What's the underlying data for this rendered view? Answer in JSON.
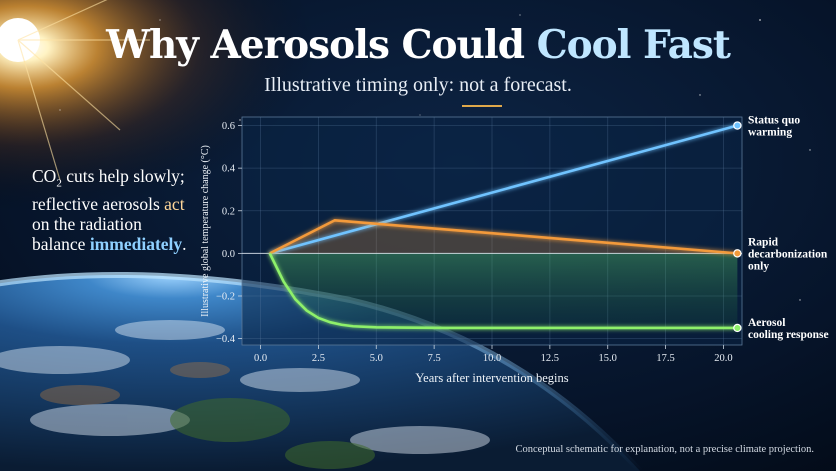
{
  "header": {
    "title_main": "Why Aerosols Could ",
    "title_highlight": "Cool Fast",
    "subtitle": "Illustrative timing only: not a forecast."
  },
  "side_text": {
    "part1": "CO",
    "subscript": "2",
    "part2": " cuts help slowly; reflective aerosols ",
    "part3": "act",
    "part4": " on the radiation balance ",
    "part5": "immediately",
    "part6": "."
  },
  "footnote": "Conceptual schematic for explanation, not a precise climate projection.",
  "colors": {
    "status_quo": "#6fc3ff",
    "rapid_decarbonization": "#f39a3b",
    "aerosol": "#8ef06a",
    "zero_line": "#dfe6ee",
    "title_highlight": "#bfe6ff"
  },
  "chart_data": {
    "type": "line",
    "xlabel": "Years after intervention begins",
    "ylabel": "Illustrative global temperature change (°C)",
    "xlim": [
      -0.8,
      20.8
    ],
    "ylim": [
      -0.43,
      0.64
    ],
    "xticks": [
      0.0,
      2.5,
      5.0,
      7.5,
      10.0,
      12.5,
      15.0,
      17.5,
      20.0
    ],
    "xtick_labels": [
      "0.0",
      "2.5",
      "5.0",
      "7.5",
      "10.0",
      "12.5",
      "15.0",
      "17.5",
      "20.0"
    ],
    "yticks": [
      -0.4,
      -0.2,
      0.0,
      0.2,
      0.4,
      0.6
    ],
    "ytick_labels": [
      "−0.4",
      "−0.2",
      "0.0",
      "0.2",
      "0.4",
      "0.6"
    ],
    "grid": true,
    "series": [
      {
        "key": "status_quo",
        "name": "Status quo warming",
        "label_lines": [
          "Status quo",
          "warming"
        ],
        "x": [
          0.4,
          20.6
        ],
        "y": [
          0.0,
          0.6
        ]
      },
      {
        "key": "rapid_decarbonization",
        "name": "Rapid decarbonization only",
        "label_lines": [
          "Rapid",
          "decarbonization",
          "only"
        ],
        "x": [
          0.4,
          3.2,
          20.6
        ],
        "y": [
          0.0,
          0.155,
          0.0
        ]
      },
      {
        "key": "aerosol",
        "name": "Aerosol cooling response",
        "label_lines": [
          "Aerosol",
          "cooling response"
        ],
        "x": [
          0.4,
          1.0,
          1.5,
          2.0,
          2.5,
          3.0,
          3.5,
          4.0,
          5.0,
          6.0,
          8.0,
          12.0,
          20.6
        ],
        "y": [
          0.0,
          -0.133,
          -0.215,
          -0.269,
          -0.303,
          -0.323,
          -0.335,
          -0.342,
          -0.347,
          -0.348,
          -0.35,
          -0.35,
          -0.35
        ]
      }
    ]
  }
}
